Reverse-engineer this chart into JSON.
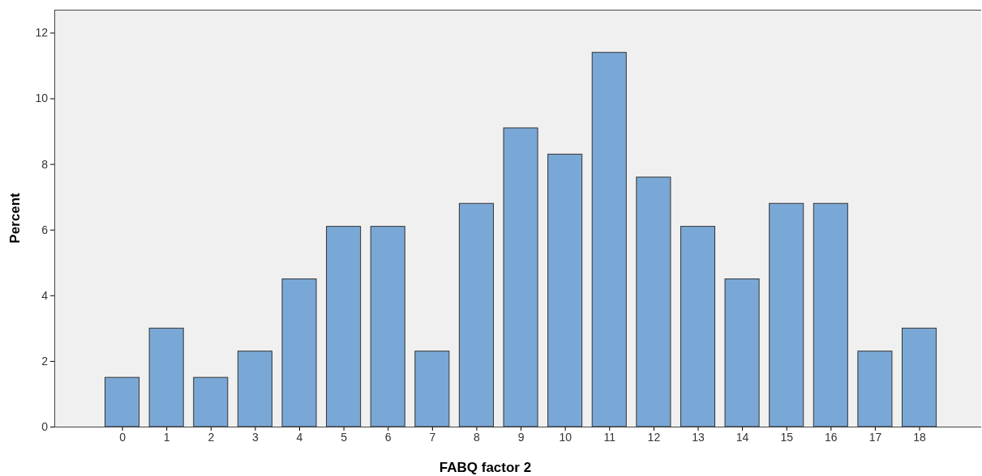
{
  "chart_data": {
    "type": "bar",
    "xlabel": "FABQ factor 2",
    "ylabel": "Percent",
    "categories": [
      "0",
      "1",
      "2",
      "3",
      "4",
      "5",
      "6",
      "7",
      "8",
      "9",
      "10",
      "11",
      "12",
      "13",
      "14",
      "15",
      "16",
      "17",
      "18"
    ],
    "values": [
      1.5,
      3.0,
      1.5,
      2.3,
      4.5,
      6.1,
      6.1,
      2.3,
      6.8,
      9.1,
      8.3,
      11.4,
      7.6,
      6.1,
      4.5,
      6.8,
      6.8,
      2.3,
      3.0
    ],
    "color": "#7aa8d6",
    "ylim": [
      0,
      12.7
    ],
    "yticks": [
      0,
      2,
      4,
      6,
      8,
      10,
      12
    ],
    "grid": false
  }
}
